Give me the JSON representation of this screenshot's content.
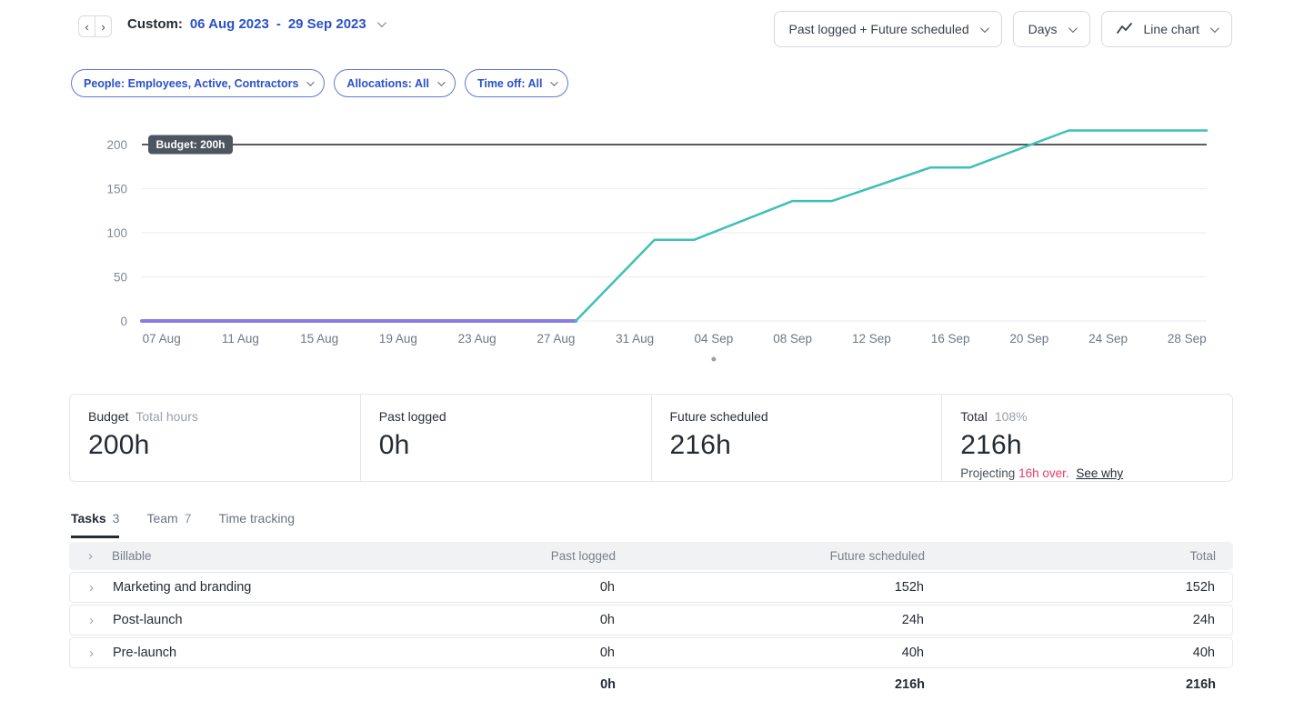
{
  "header": {
    "range_label": "Custom:",
    "range_start": "06 Aug 2023",
    "range_dash": "-",
    "range_end": "29 Sep 2023",
    "mode_dropdown": "Past logged + Future scheduled",
    "granularity_dropdown": "Days",
    "chart_type_dropdown": "Line chart"
  },
  "icons": {
    "prev": "‹",
    "next": "›",
    "row_expand": "›",
    "line_chart_icon": "zigzag-line",
    "chevron_down_icon": "css-chevron"
  },
  "filters": [
    {
      "label": "People: Employees, Active, Contractors"
    },
    {
      "label": "Allocations: All"
    },
    {
      "label": "Time off: All"
    }
  ],
  "chart_data": {
    "type": "line",
    "title": "Budget burn-up: past logged + future scheduled hours vs budget",
    "x_unit": "days from 06 Aug 2023",
    "date_range": [
      "06 Aug 2023",
      "29 Sep 2023"
    ],
    "x_range_days": [
      0,
      54
    ],
    "ylim": [
      0,
      222
    ],
    "y_ticks": [
      0,
      50,
      100,
      150,
      200
    ],
    "x_ticks": [
      [
        1,
        "07 Aug"
      ],
      [
        5,
        "11 Aug"
      ],
      [
        9,
        "15 Aug"
      ],
      [
        13,
        "19 Aug"
      ],
      [
        17,
        "23 Aug"
      ],
      [
        21,
        "27 Aug"
      ],
      [
        25,
        "31 Aug"
      ],
      [
        29,
        "04 Sep"
      ],
      [
        33,
        "08 Sep"
      ],
      [
        37,
        "12 Sep"
      ],
      [
        41,
        "16 Sep"
      ],
      [
        45,
        "20 Sep"
      ],
      [
        49,
        "24 Sep"
      ],
      [
        53,
        "28 Sep"
      ]
    ],
    "budget_line": {
      "value": 200,
      "label": "Budget: 200h",
      "color": "#20262e",
      "pill_bg": "#4d5560"
    },
    "series": [
      {
        "name": "Past logged",
        "color": "#8a7ce4",
        "stroke_width": 4,
        "points": [
          [
            0,
            0
          ],
          [
            22,
            0
          ]
        ]
      },
      {
        "name": "Past logged + Future scheduled",
        "color": "#3fc0b6",
        "stroke_width": 2.5,
        "points": [
          [
            22,
            0
          ],
          [
            26,
            92
          ],
          [
            28,
            92
          ],
          [
            33,
            136
          ],
          [
            35,
            136
          ],
          [
            40,
            174
          ],
          [
            42,
            174
          ],
          [
            47,
            216
          ],
          [
            54,
            216
          ]
        ]
      }
    ],
    "today_marker_day": 29,
    "grid": true,
    "legend": false
  },
  "summary_cards": [
    {
      "label": "Budget",
      "sublabel": "Total hours",
      "value": "200h"
    },
    {
      "label": "Past logged",
      "value": "0h"
    },
    {
      "label": "Future scheduled",
      "value": "216h"
    },
    {
      "label": "Total",
      "sublabel": "108%",
      "value": "216h",
      "note_prefix": "Projecting",
      "note_alert": "16h over.",
      "note_link": "See why"
    }
  ],
  "tabs": [
    {
      "label": "Tasks",
      "count": "3",
      "active": true
    },
    {
      "label": "Team",
      "count": "7",
      "active": false
    },
    {
      "label": "Time tracking",
      "count": "",
      "active": false
    }
  ],
  "table": {
    "header": {
      "name": "Billable",
      "col_past": "Past logged",
      "col_future": "Future scheduled",
      "col_total": "Total"
    },
    "rows": [
      {
        "name": "Marketing and branding",
        "past": "0h",
        "future": "152h",
        "total": "152h"
      },
      {
        "name": "Post-launch",
        "past": "0h",
        "future": "24h",
        "total": "24h"
      },
      {
        "name": "Pre-launch",
        "past": "0h",
        "future": "40h",
        "total": "40h"
      }
    ],
    "footer": {
      "past": "0h",
      "future": "216h",
      "total": "216h"
    }
  },
  "colors": {
    "accent_blue": "#2a50c8",
    "teal_series": "#3fc0b6",
    "purple_series": "#8a7ce4",
    "alert_pink": "#e93a6c",
    "budget_line": "#20262e"
  }
}
